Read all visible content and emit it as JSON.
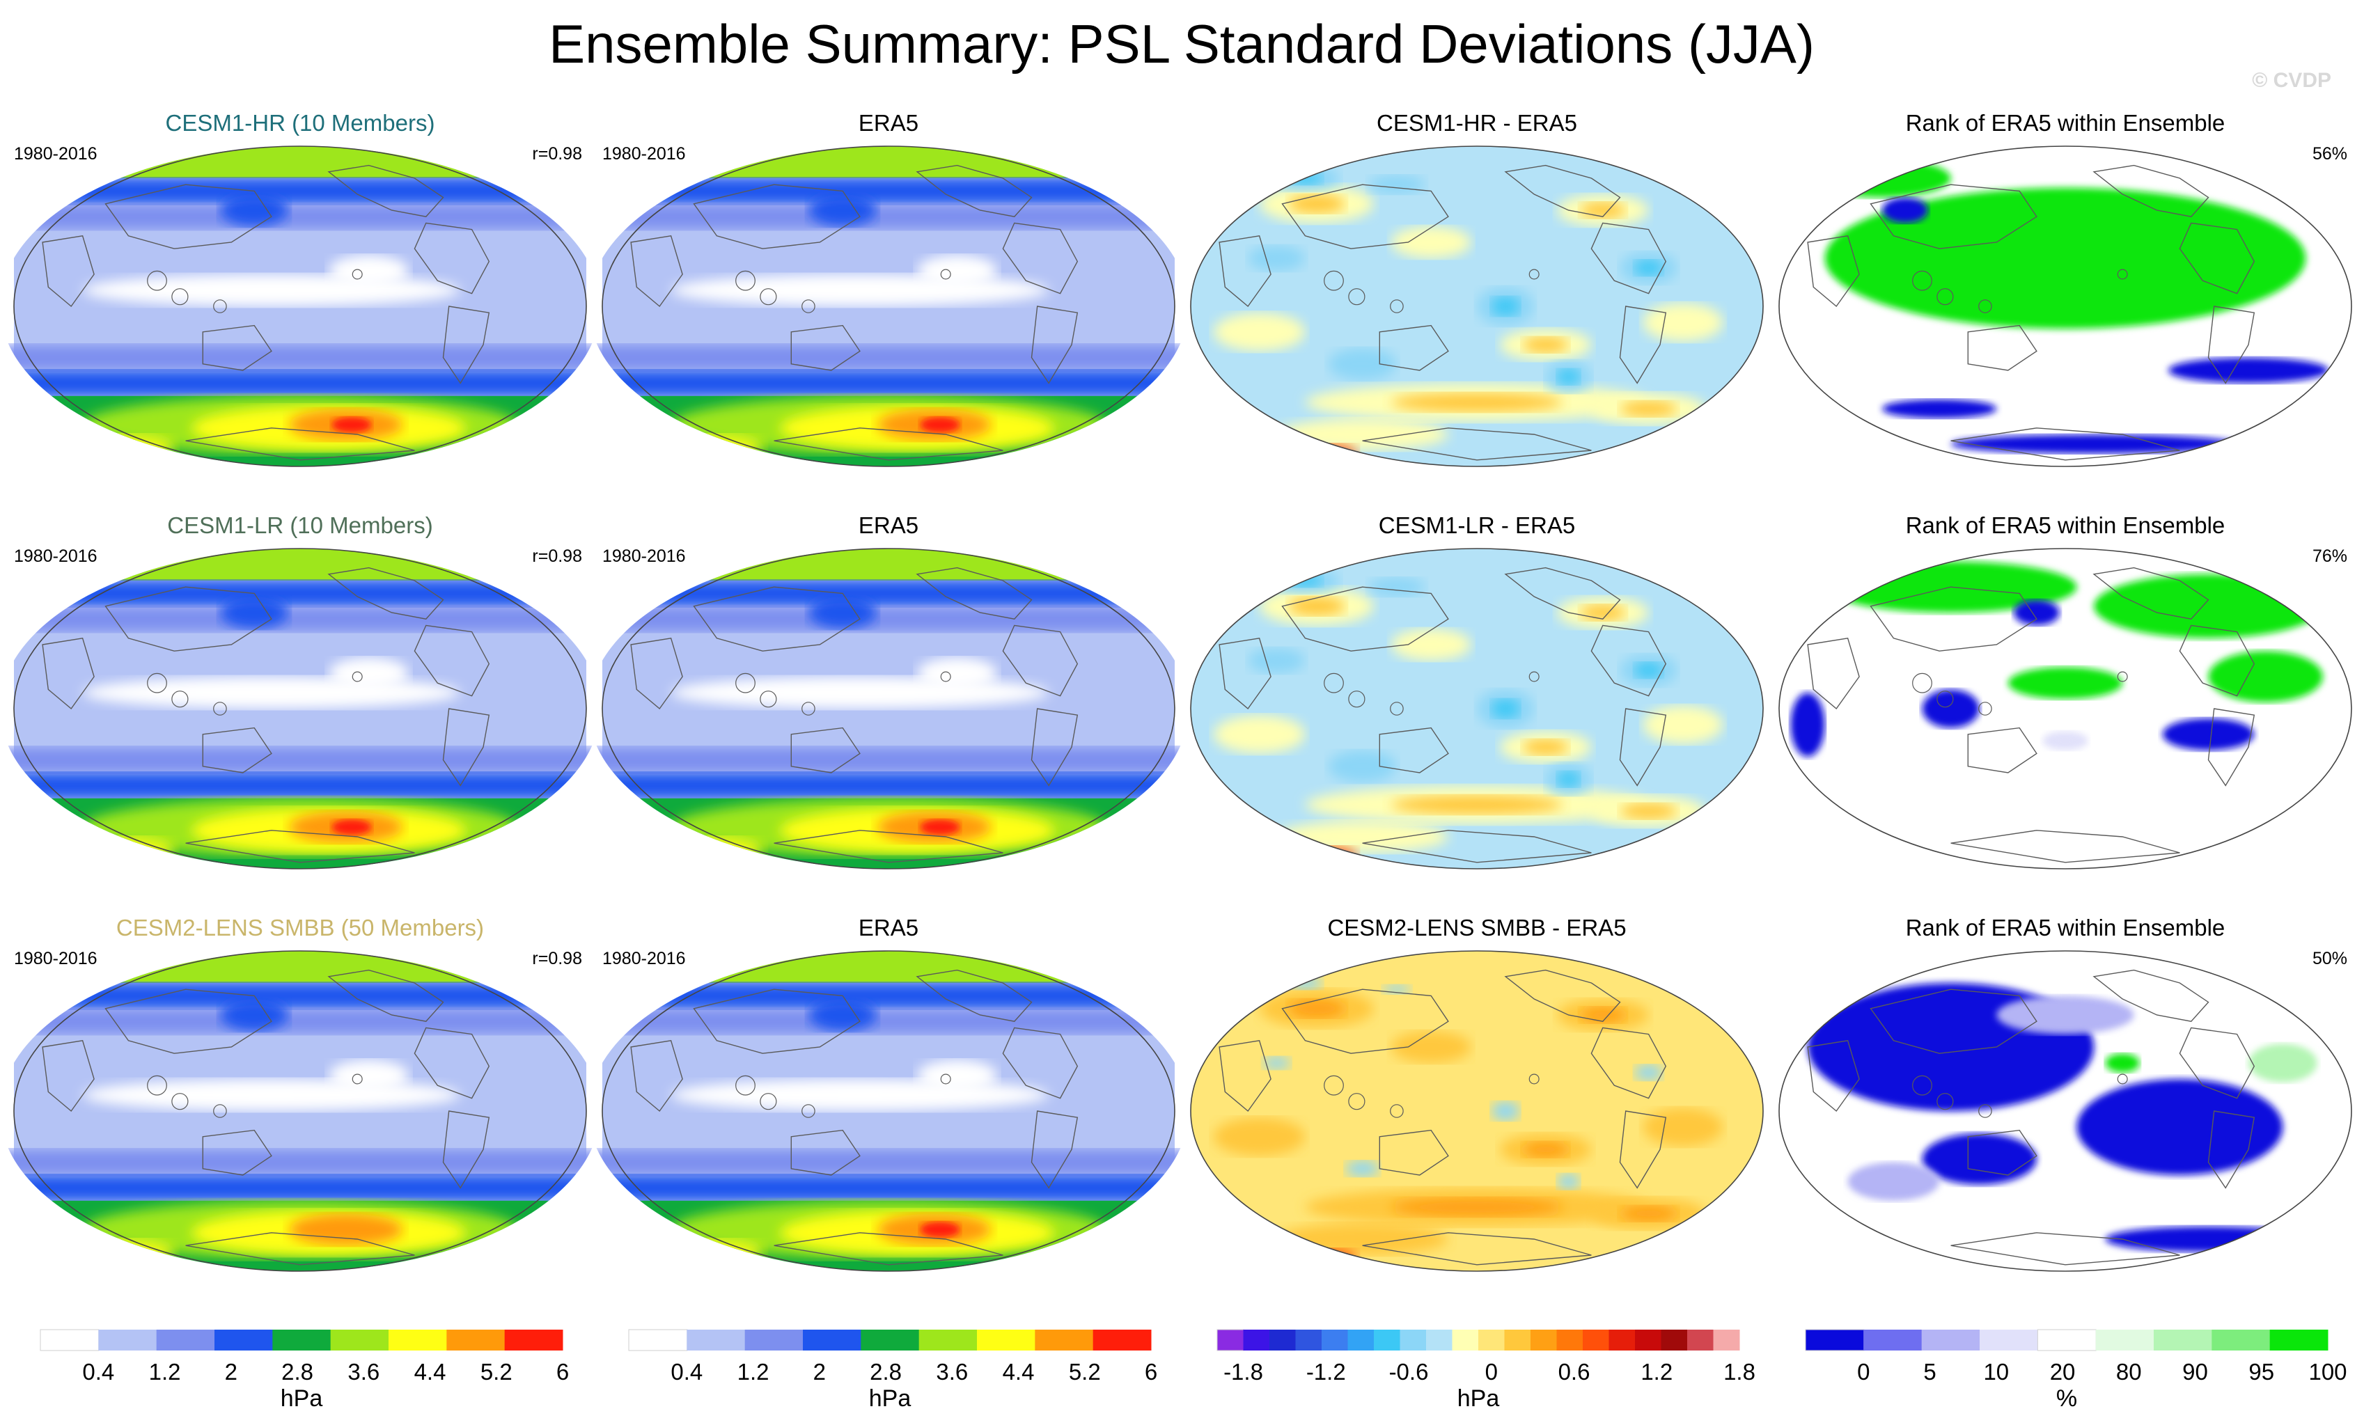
{
  "page": {
    "title": "Ensemble Summary: PSL Standard Deviations (JJA)",
    "watermark": "© CVDP"
  },
  "colors": {
    "title_hr": "#1e6f7a",
    "title_lr": "#4f6f58",
    "title_lens": "#c9b56a",
    "land_outline": "#5a5a5a",
    "map_border": "#444444"
  },
  "chart_data": {
    "type": "heatmap",
    "rows": [
      {
        "model": {
          "title": "CESM1-HR (10 Members)",
          "period": "1980-2016",
          "corr": "r=0.98",
          "intensity": 1.0
        },
        "obs": {
          "title": "ERA5",
          "period": "1980-2016"
        },
        "diff": {
          "title": "CESM1-HR - ERA5",
          "bias": 0.0
        },
        "rank": {
          "title": "Rank of ERA5 within Ensemble",
          "pct": "56%",
          "mode": "green"
        }
      },
      {
        "model": {
          "title": "CESM1-LR (10 Members)",
          "period": "1980-2016",
          "corr": "r=0.98",
          "intensity": 0.95
        },
        "obs": {
          "title": "ERA5",
          "period": "1980-2016"
        },
        "diff": {
          "title": "CESM1-LR - ERA5",
          "bias": 0.2
        },
        "rank": {
          "title": "Rank of ERA5 within Ensemble",
          "pct": "76%",
          "mode": "mixed"
        }
      },
      {
        "model": {
          "title": "CESM2-LENS SMBB (50 Members)",
          "period": "1980-2016",
          "corr": "r=0.98",
          "intensity": 0.82
        },
        "obs": {
          "title": "ERA5",
          "period": "1980-2016"
        },
        "diff": {
          "title": "CESM2-LENS SMBB - ERA5",
          "bias": 0.55
        },
        "rank": {
          "title": "Rank of ERA5 within Ensemble",
          "pct": "50%",
          "mode": "blue"
        }
      }
    ],
    "colorbars": [
      {
        "unit": "hPa",
        "ticks": [
          "0.4",
          "1.2",
          "2",
          "2.8",
          "3.6",
          "4.4",
          "5.2",
          "6"
        ],
        "colors": [
          "#ffffff",
          "#b4c3f5",
          "#7d8fef",
          "#1f55ee",
          "#0faa3c",
          "#9ee61c",
          "#ffff14",
          "#ff9a0a",
          "#ff1e0a"
        ]
      },
      {
        "unit": "hPa",
        "ticks": [
          "0.4",
          "1.2",
          "2",
          "2.8",
          "3.6",
          "4.4",
          "5.2",
          "6"
        ],
        "colors": [
          "#ffffff",
          "#b4c3f5",
          "#7d8fef",
          "#1f55ee",
          "#0faa3c",
          "#9ee61c",
          "#ffff14",
          "#ff9a0a",
          "#ff1e0a"
        ]
      },
      {
        "unit": "hPa",
        "ticks": [
          "-1.8",
          "-1.2",
          "-0.6",
          "0",
          "0.6",
          "1.2",
          "1.8"
        ],
        "colors": [
          "#8a2be2",
          "#3c14e6",
          "#1e2ad2",
          "#2f55e0",
          "#3c7ef0",
          "#32a3f5",
          "#3cc8f5",
          "#8cd6f7",
          "#b4e2f7",
          "#ffffb4",
          "#ffe678",
          "#ffc83c",
          "#ffa014",
          "#ff780a",
          "#ff500a",
          "#e61e0a",
          "#c80a0a",
          "#a00a0a",
          "#d24650",
          "#f5aaaa"
        ]
      },
      {
        "unit": "%",
        "ticks": [
          "0",
          "5",
          "10",
          "20",
          "80",
          "90",
          "95",
          "100"
        ],
        "colors": [
          "#0a0adc",
          "#6e6ef0",
          "#b4b4f5",
          "#e1e1fa",
          "#ffffff",
          "#e1fae1",
          "#b4f5b4",
          "#7ded7d",
          "#0ae60a"
        ]
      }
    ]
  }
}
